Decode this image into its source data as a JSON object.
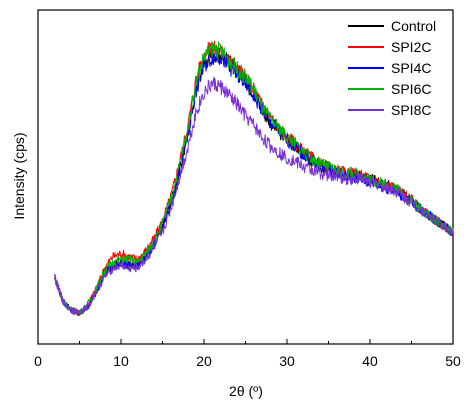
{
  "chart_data": {
    "type": "line",
    "xlabel": "2θ (º)",
    "ylabel": "Intensity (cps)",
    "xlim": [
      0,
      50
    ],
    "ylim": [
      0,
      100
    ],
    "x_ticks": [
      0,
      10,
      20,
      30,
      40,
      50
    ],
    "x_tick_labels": [
      "0",
      "10",
      "20",
      "30",
      "40",
      "50"
    ],
    "y_ticks_shown": false,
    "grid": false,
    "legend_position": "top-right",
    "x": [
      2,
      3,
      4,
      5,
      6,
      7,
      8,
      9,
      10,
      11,
      12,
      13,
      14,
      15,
      16,
      17,
      18,
      19,
      20,
      21,
      22,
      23,
      24,
      25,
      26,
      27,
      28,
      29,
      30,
      31,
      32,
      33,
      34,
      35,
      36,
      37,
      38,
      39,
      40,
      41,
      42,
      43,
      44,
      45,
      46,
      47,
      48,
      49,
      50
    ],
    "series": [
      {
        "name": "Control",
        "color": "#000000",
        "values": [
          17,
          9,
          6,
          5,
          7,
          12,
          18,
          21,
          22,
          21,
          21,
          24,
          28,
          34,
          42,
          52,
          64,
          80,
          89,
          92,
          92,
          89,
          86,
          83,
          79,
          73,
          69,
          66,
          63,
          61,
          58,
          56,
          54,
          53,
          52,
          51,
          52,
          51,
          50,
          49,
          48,
          47,
          45,
          43,
          40,
          38,
          36,
          34,
          32
        ]
      },
      {
        "name": "SPI2C",
        "color": "#ff0000",
        "values": [
          17,
          9,
          6,
          5,
          8,
          13,
          20,
          24,
          25,
          24,
          23,
          26,
          30,
          36,
          44,
          55,
          67,
          83,
          92,
          94,
          93,
          90,
          87,
          84,
          80,
          75,
          71,
          67,
          64,
          62,
          59,
          57,
          55,
          54,
          53,
          52,
          52,
          51,
          50,
          49,
          48,
          47,
          45,
          43,
          40,
          38,
          36,
          34,
          32
        ]
      },
      {
        "name": "SPI4C",
        "color": "#0000ff",
        "values": [
          17,
          9,
          6,
          5,
          7,
          12,
          18,
          21,
          22,
          21,
          21,
          24,
          28,
          34,
          42,
          52,
          64,
          79,
          88,
          91,
          91,
          88,
          85,
          82,
          78,
          73,
          69,
          66,
          63,
          61,
          58,
          56,
          54,
          53,
          52,
          51,
          51,
          50,
          49,
          48,
          47,
          46,
          44,
          42,
          40,
          38,
          36,
          34,
          32
        ]
      },
      {
        "name": "SPI6C",
        "color": "#00b400",
        "values": [
          17,
          9,
          6,
          5,
          8,
          13,
          19,
          22,
          23,
          23,
          22,
          25,
          29,
          35,
          43,
          54,
          66,
          82,
          91,
          94,
          93,
          90,
          87,
          84,
          80,
          74,
          70,
          67,
          64,
          62,
          59,
          57,
          55,
          54,
          53,
          52,
          52,
          51,
          50,
          49,
          48,
          47,
          45,
          43,
          40,
          38,
          36,
          34,
          32
        ]
      },
      {
        "name": "SPI8C",
        "color": "#7b2fd6",
        "values": [
          17,
          9,
          6,
          5,
          7,
          12,
          17,
          20,
          21,
          20,
          20,
          23,
          27,
          32,
          40,
          50,
          60,
          72,
          79,
          82,
          81,
          78,
          75,
          71,
          68,
          64,
          61,
          59,
          57,
          56,
          54,
          53,
          52,
          51,
          51,
          50,
          50,
          50,
          49,
          48,
          47,
          46,
          44,
          42,
          40,
          38,
          36,
          34,
          32
        ]
      }
    ]
  }
}
